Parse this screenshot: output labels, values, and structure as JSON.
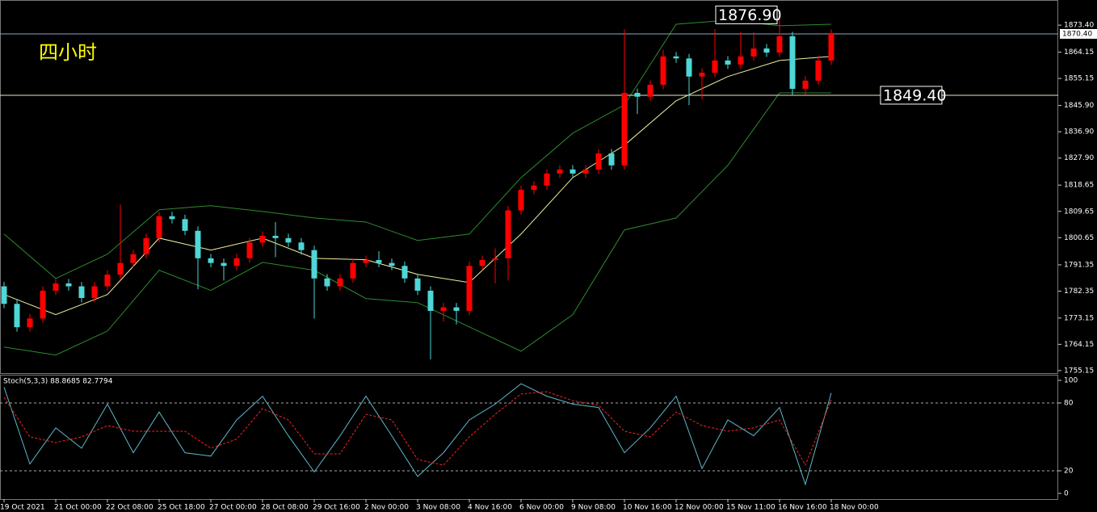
{
  "chart_data": {
    "type": "candlestick",
    "title": "四小时",
    "categories": [
      "19 Oct 2021",
      null,
      null,
      null,
      "21 Oct 00:00",
      null,
      null,
      null,
      "22 Oct 08:00",
      null,
      null,
      null,
      "25 Oct 18:00",
      null,
      null,
      null,
      "27 Oct 00:00",
      null,
      null,
      null,
      "28 Oct 08:00",
      null,
      null,
      null,
      "29 Oct 16:00",
      null,
      null,
      null,
      "2 Nov 00:00",
      null,
      null,
      null,
      "3 Nov 08:00",
      null,
      null,
      null,
      "4 Nov 16:00",
      null,
      null,
      null,
      "6 Nov 00:00",
      null,
      null,
      null,
      "9 Nov 08:00",
      null,
      null,
      null,
      "10 Nov 16:00",
      null,
      null,
      null,
      "12 Nov 00:00",
      null,
      null,
      null,
      "15 Nov 11:00",
      null,
      null,
      null,
      "16 Nov 16:00",
      null,
      null,
      null,
      "18 Nov 00:00"
    ],
    "open": [
      1784,
      1778,
      1770,
      1773,
      1782.5,
      1785,
      1784,
      1780,
      1784,
      1788,
      1792,
      1795,
      1800.5,
      1808,
      1807,
      1803,
      1793.6,
      1792,
      1791,
      1793.6,
      1799,
      1801.3,
      1800.5,
      1799,
      1796.4,
      1786.7,
      1784,
      1786.7,
      1792,
      1793,
      1792,
      1791,
      1786.7,
      1782.5,
      1775.6,
      1776.8,
      1775.6,
      1791,
      1793,
      1793.6,
      1810,
      1817,
      1818.5,
      1822.6,
      1824,
      1822.6,
      1824,
      1829.5,
      1825.4,
      1850.2,
      1848.9,
      1853,
      1862.7,
      1862,
      1855.8,
      1857.1,
      1861.3,
      1859.9,
      1862.7,
      1865.4,
      1864,
      1869.6,
      1851.6,
      1854.4,
      1861.3
    ],
    "high": [
      1785.5,
      1779.5,
      1774.5,
      1784,
      1786.5,
      1786.5,
      1785.5,
      1785.5,
      1789.5,
      1812,
      1796.5,
      1802,
      1809.5,
      1809.5,
      1808.5,
      1804.5,
      1795.1,
      1793.5,
      1795.1,
      1800.5,
      1802.8,
      1806,
      1802,
      1800.5,
      1797.9,
      1788.2,
      1788.2,
      1793.5,
      1794.5,
      1796,
      1793.5,
      1792.5,
      1788.2,
      1784,
      1778.3,
      1778.3,
      1792.5,
      1794.5,
      1797,
      1811.5,
      1818.5,
      1820,
      1824.1,
      1825.5,
      1825.5,
      1825.5,
      1831,
      1831,
      1872,
      1851.7,
      1854.5,
      1865,
      1864.2,
      1863.5,
      1858.6,
      1872,
      1862.8,
      1871,
      1871,
      1866.9,
      1876.9,
      1871.1,
      1855.9,
      1862.8,
      1871.9
    ],
    "low": [
      1776.5,
      1768.5,
      1768.5,
      1771.5,
      1781,
      1782.5,
      1778.5,
      1778.5,
      1782.5,
      1786.5,
      1790.5,
      1793.5,
      1799,
      1805.5,
      1801.5,
      1783,
      1790.5,
      1786,
      1789.5,
      1792.1,
      1797.5,
      1794,
      1797.5,
      1794.9,
      1773,
      1782.5,
      1782.5,
      1785.2,
      1790.5,
      1790.5,
      1789.5,
      1785.2,
      1781,
      1759,
      1772,
      1771,
      1774.1,
      1789.5,
      1785,
      1786,
      1808.5,
      1815.5,
      1817,
      1821.1,
      1821.1,
      1821.1,
      1822.5,
      1823.9,
      1823.9,
      1843,
      1847.4,
      1851.5,
      1860.5,
      1846,
      1848,
      1855.6,
      1858.4,
      1858.4,
      1861.2,
      1862.5,
      1862.5,
      1849.4,
      1849.5,
      1852.9,
      1859.8
    ],
    "close": [
      1778,
      1770,
      1773,
      1782.5,
      1785,
      1784,
      1780,
      1784,
      1788,
      1792,
      1795,
      1800.5,
      1808,
      1807,
      1803,
      1793.6,
      1792,
      1791,
      1793.6,
      1799,
      1801.3,
      1800.5,
      1799,
      1796.4,
      1786.7,
      1784,
      1786.7,
      1792,
      1793,
      1792,
      1791,
      1786.7,
      1782.5,
      1775.6,
      1776.8,
      1775.6,
      1791,
      1793,
      1793.6,
      1810,
      1817,
      1818.5,
      1822.6,
      1824,
      1822.6,
      1824,
      1829.5,
      1825.4,
      1850.2,
      1848.9,
      1853,
      1862.7,
      1862,
      1855.8,
      1857.1,
      1861.3,
      1859.9,
      1862.7,
      1865.4,
      1864,
      1869.6,
      1851.6,
      1854.4,
      1861.3,
      1870.4
    ],
    "up_color": "#ff0000",
    "down_color": "#4fd6d6",
    "ylim": [
      1754.3,
      1882.0
    ],
    "yticks": [
      {
        "value": 1873.4,
        "label": "1873.40"
      },
      1864.15,
      1855.15,
      {
        "value": 1845.9,
        "label": "1845.90"
      },
      {
        "value": 1836.9,
        "label": "1836.90"
      },
      {
        "value": 1827.9,
        "label": "1827.90"
      },
      1818.65,
      1809.65,
      1800.65,
      1791.35,
      1782.35,
      1773.15,
      1764.15,
      1755.15
    ],
    "bands": {
      "x": [
        0,
        4,
        8,
        12,
        16,
        20,
        24,
        28,
        32,
        36,
        40,
        44,
        48,
        52,
        56,
        60,
        64
      ],
      "upper": [
        1801.9,
        1786.7,
        1795.0,
        1810.2,
        1811.6,
        1809.6,
        1807.4,
        1806.0,
        1799.7,
        1801.9,
        1821.2,
        1836.4,
        1846.1,
        1873.7,
        1875.1,
        1873.2,
        1873.7
      ],
      "middle": [
        1781.2,
        1774.3,
        1781.2,
        1800.5,
        1796.4,
        1800.5,
        1793.6,
        1793.1,
        1788.1,
        1785.3,
        1801.9,
        1821.2,
        1832.3,
        1847.5,
        1855.8,
        1861.3,
        1862.7
      ],
      "lower": [
        1763.2,
        1760.5,
        1768.7,
        1789.5,
        1782.6,
        1792.2,
        1789.5,
        1779.8,
        1778.4,
        1770.1,
        1761.8,
        1774.3,
        1803.3,
        1807.4,
        1825.4,
        1850.2,
        1850.2
      ],
      "color": "#2e8b2e",
      "middle_color": "#f0f0a0"
    },
    "hlines": [
      {
        "value": 1870.4,
        "label": "1870.40",
        "color": "#8fa8c8"
      },
      {
        "value": 1849.4,
        "label": "1849.40",
        "color": "#e8e8c8"
      }
    ],
    "annotations": [
      {
        "text": "1876.90",
        "value": 1876.9,
        "index": 60
      }
    ],
    "indicator": {
      "type": "line",
      "label": "Stoch(5,3,3) 88.8685 82.7794",
      "x": [
        0,
        2,
        4,
        6,
        8,
        10,
        12,
        14,
        16,
        18,
        20,
        22,
        24,
        26,
        28,
        30,
        32,
        34,
        36,
        38,
        40,
        42,
        44,
        46,
        48,
        50,
        52,
        54,
        56,
        58,
        60,
        62,
        64
      ],
      "k": {
        "color": "#5fb8cc",
        "values": [
          94,
          26,
          58,
          40,
          79,
          36,
          72,
          36,
          33,
          65,
          86,
          51,
          19,
          51,
          86,
          51,
          15,
          36,
          65,
          79,
          97,
          86,
          79,
          76,
          36,
          58,
          86,
          22,
          65,
          51,
          76,
          8,
          88.8685
        ]
      },
      "d": {
        "color": "#ff2020",
        "values": [
          85,
          50,
          45,
          50,
          60,
          55,
          55,
          55,
          40,
          48,
          75,
          65,
          35,
          35,
          70,
          65,
          30,
          25,
          50,
          70,
          88,
          90,
          82,
          78,
          55,
          50,
          72,
          60,
          55,
          58,
          65,
          25,
          82.7794
        ]
      },
      "ylim": [
        -5,
        105
      ],
      "yticks": [
        0,
        20,
        80,
        100
      ],
      "levels": [
        20,
        80
      ]
    }
  }
}
